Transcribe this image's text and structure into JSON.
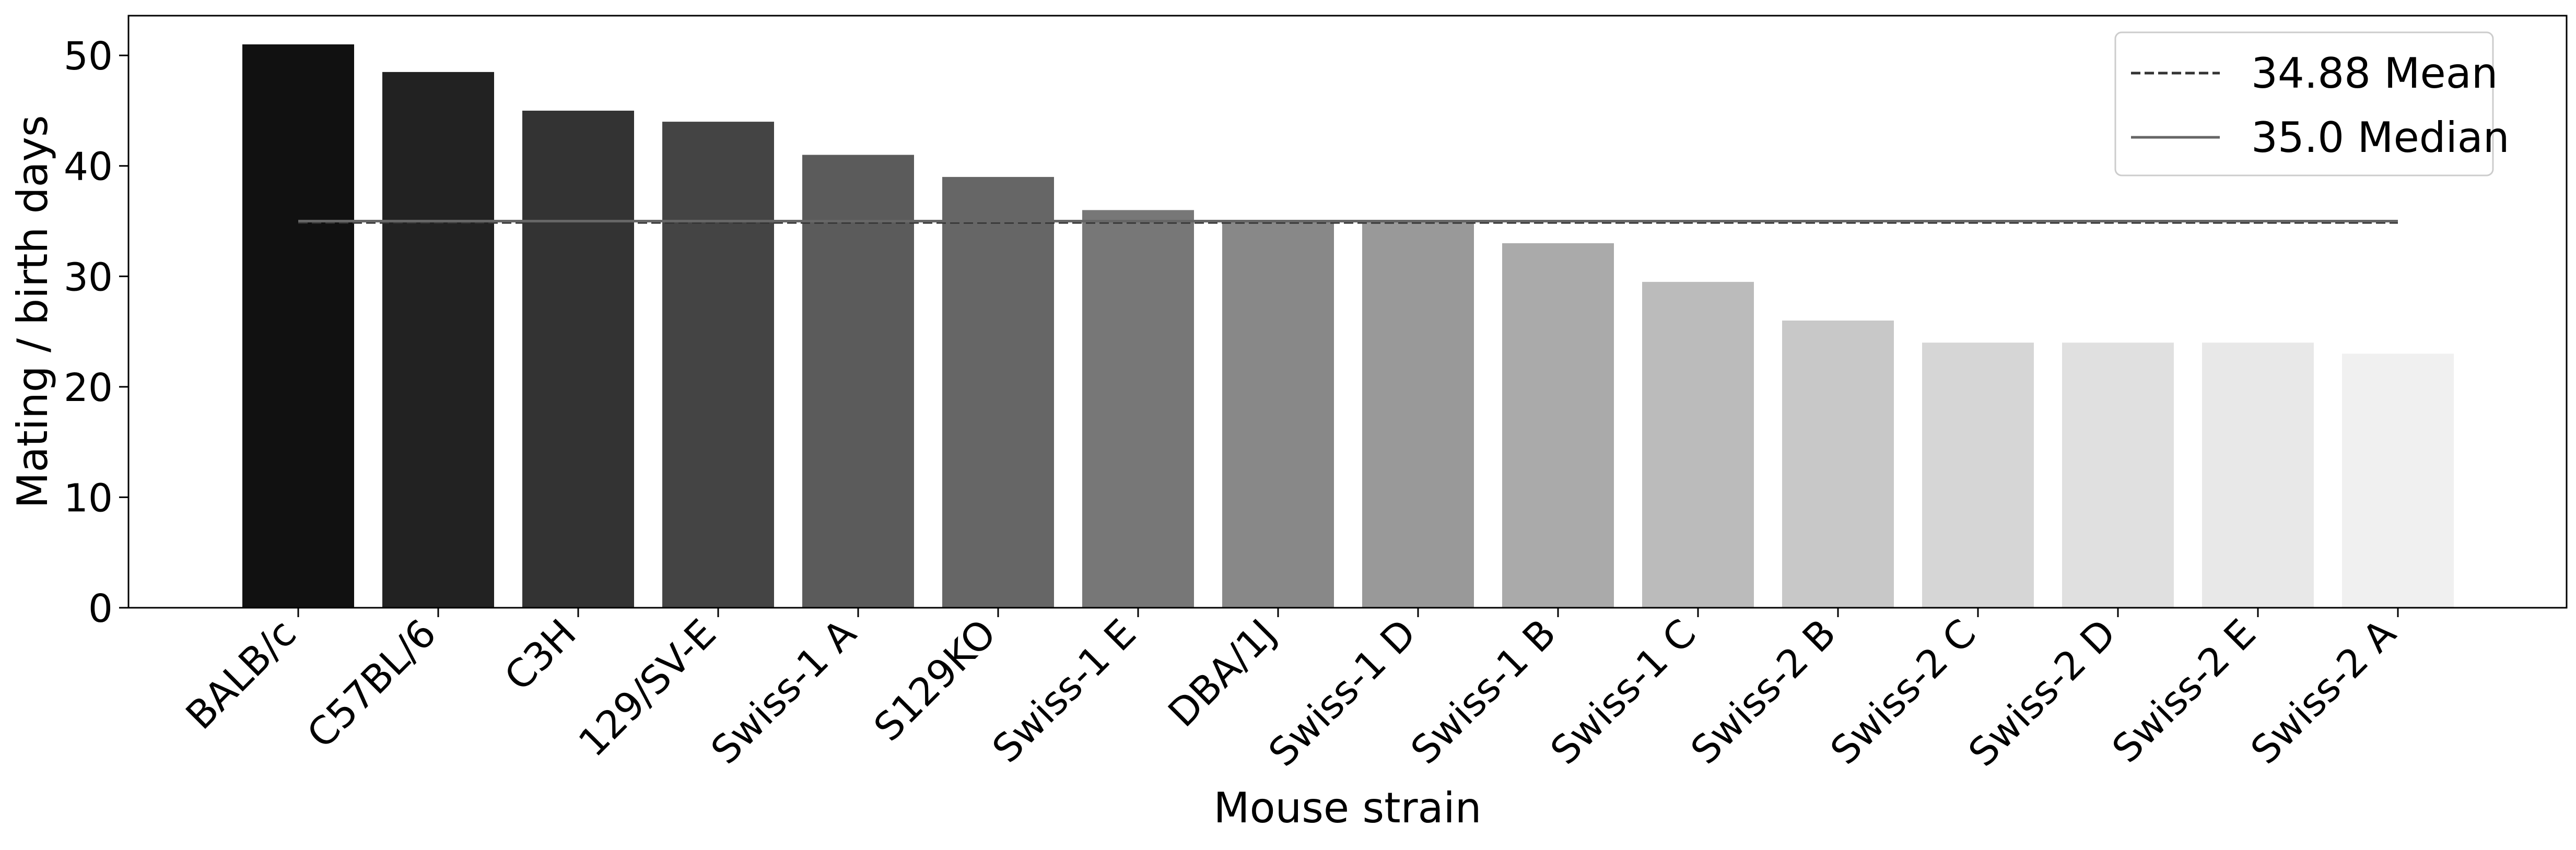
{
  "chart_data": {
    "type": "bar",
    "title": "",
    "xlabel": "Mouse strain",
    "ylabel": "Mating / birth days",
    "categories": [
      "BALB/c",
      "C57BL/6",
      "C3H",
      "129/SV-E",
      "Swiss-1 A",
      "S129KO",
      "Swiss-1 E",
      "DBA/1J",
      "Swiss-1 D",
      "Swiss-1 B",
      "Swiss-1 C",
      "Swiss-2 B",
      "Swiss-2 C",
      "Swiss-2 D",
      "Swiss-2 E",
      "Swiss-2 A"
    ],
    "values": [
      51,
      48.5,
      45,
      44,
      41,
      39,
      36,
      35,
      35,
      33,
      29.5,
      26,
      24,
      24,
      24,
      23
    ],
    "bar_colors": [
      "#111111",
      "#222222",
      "#333333",
      "#444444",
      "#5b5b5b",
      "#666666",
      "#777777",
      "#888888",
      "#999999",
      "#aaaaaa",
      "#bbbbbb",
      "#c8c8c8",
      "#d6d6d6",
      "#e0e0e0",
      "#e8e8e8",
      "#f0f0f0"
    ],
    "ylim": [
      0,
      53.6
    ],
    "yticks": [
      0,
      10,
      20,
      30,
      40,
      50
    ],
    "grid": false,
    "legend_position": "top-right",
    "reference_lines": [
      {
        "label": "34.88 Mean",
        "value": 34.88,
        "style": "dashed",
        "color": "#333333"
      },
      {
        "label": "35.0 Median",
        "value": 35.0,
        "style": "solid",
        "color": "#666666"
      }
    ]
  }
}
